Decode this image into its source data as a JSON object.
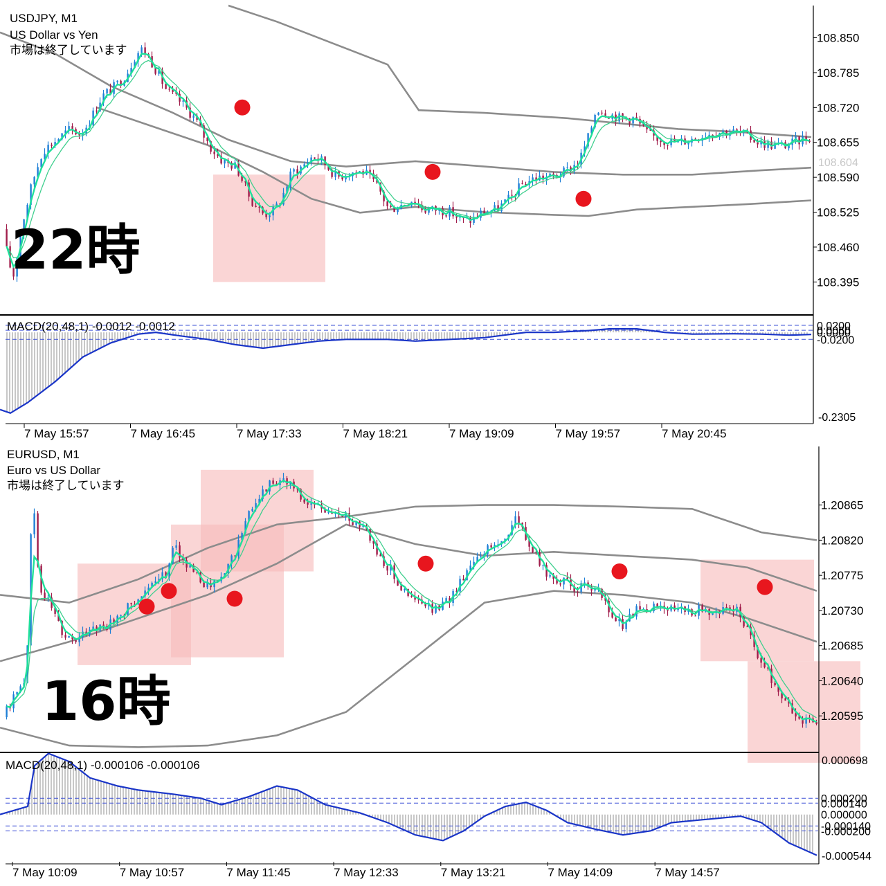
{
  "chart_data": [
    {
      "type": "candlestick",
      "symbol_line": "USDJPY, M1",
      "description": "US Dollar vs Yen",
      "status": "市場は終了しています",
      "overlay_text": "22時",
      "ylim": [
        108.34,
        108.91
      ],
      "y_ticks": [
        "108.850",
        "108.785",
        "108.720",
        "108.655",
        "108.590",
        "108.525",
        "108.460",
        "108.395"
      ],
      "current_price": "108.604",
      "x_ticks": [
        "7 May 15:57",
        "7 May 16:45",
        "7 May 17:33",
        "7 May 18:21",
        "7 May 19:09",
        "7 May 19:57",
        "7 May 20:45"
      ],
      "price_path": [
        [
          0,
          108.56
        ],
        [
          12,
          108.46
        ],
        [
          22,
          108.4
        ],
        [
          35,
          108.5
        ],
        [
          50,
          108.58
        ],
        [
          65,
          108.64
        ],
        [
          85,
          108.66
        ],
        [
          105,
          108.68
        ],
        [
          120,
          108.67
        ],
        [
          135,
          108.7
        ],
        [
          150,
          108.74
        ],
        [
          170,
          108.76
        ],
        [
          185,
          108.78
        ],
        [
          200,
          108.82
        ],
        [
          210,
          108.83
        ],
        [
          225,
          108.8
        ],
        [
          245,
          108.75
        ],
        [
          265,
          108.73
        ],
        [
          285,
          108.7
        ],
        [
          305,
          108.65
        ],
        [
          325,
          108.62
        ],
        [
          345,
          108.61
        ],
        [
          365,
          108.55
        ],
        [
          385,
          108.52
        ],
        [
          400,
          108.53
        ],
        [
          410,
          108.55
        ],
        [
          425,
          108.6
        ],
        [
          440,
          108.61
        ],
        [
          455,
          108.63
        ],
        [
          470,
          108.62
        ],
        [
          490,
          108.59
        ],
        [
          510,
          108.6
        ],
        [
          530,
          108.6
        ],
        [
          550,
          108.57
        ],
        [
          565,
          108.53
        ],
        [
          585,
          108.54
        ],
        [
          600,
          108.55
        ],
        [
          615,
          108.53
        ],
        [
          635,
          108.53
        ],
        [
          655,
          108.525
        ],
        [
          670,
          108.51
        ],
        [
          685,
          108.51
        ],
        [
          700,
          108.525
        ],
        [
          720,
          108.53
        ],
        [
          740,
          108.55
        ],
        [
          760,
          108.58
        ],
        [
          780,
          108.59
        ],
        [
          800,
          108.59
        ],
        [
          820,
          108.6
        ],
        [
          840,
          108.62
        ],
        [
          855,
          108.67
        ],
        [
          865,
          108.72
        ],
        [
          880,
          108.71
        ],
        [
          900,
          108.7
        ],
        [
          920,
          108.7
        ],
        [
          940,
          108.67
        ],
        [
          960,
          108.66
        ],
        [
          980,
          108.655
        ],
        [
          1000,
          108.66
        ],
        [
          1020,
          108.67
        ],
        [
          1040,
          108.675
        ],
        [
          1060,
          108.675
        ],
        [
          1080,
          108.67
        ],
        [
          1100,
          108.655
        ],
        [
          1120,
          108.65
        ],
        [
          1140,
          108.65
        ],
        [
          1160,
          108.66
        ],
        [
          1172,
          108.665
        ]
      ],
      "bollinger": {
        "upper": [
          [
            330,
            108.91
          ],
          [
            400,
            108.88
          ],
          [
            480,
            108.84
          ],
          [
            560,
            108.8
          ],
          [
            605,
            108.715
          ],
          [
            700,
            108.71
          ],
          [
            820,
            108.7
          ],
          [
            900,
            108.69
          ],
          [
            980,
            108.68
          ],
          [
            1060,
            108.675
          ],
          [
            1172,
            108.665
          ]
        ],
        "middle": [
          [
            0,
            108.86
          ],
          [
            80,
            108.82
          ],
          [
            160,
            108.76
          ],
          [
            250,
            108.71
          ],
          [
            330,
            108.66
          ],
          [
            420,
            108.62
          ],
          [
            500,
            108.61
          ],
          [
            600,
            108.62
          ],
          [
            700,
            108.61
          ],
          [
            800,
            108.6
          ],
          [
            900,
            108.595
          ],
          [
            1000,
            108.595
          ],
          [
            1100,
            108.603
          ],
          [
            1172,
            108.608
          ]
        ],
        "lower": [
          [
            140,
            108.72
          ],
          [
            220,
            108.685
          ],
          [
            300,
            108.65
          ],
          [
            380,
            108.6
          ],
          [
            450,
            108.55
          ],
          [
            520,
            108.524
          ],
          [
            600,
            108.535
          ],
          [
            700,
            108.525
          ],
          [
            800,
            108.52
          ],
          [
            850,
            108.518
          ],
          [
            920,
            108.53
          ],
          [
            1000,
            108.535
          ],
          [
            1080,
            108.54
          ],
          [
            1172,
            108.547
          ]
        ]
      },
      "markers": [
        [
          350,
          108.72
        ],
        [
          625,
          108.6
        ],
        [
          843,
          108.55
        ]
      ],
      "highlights": [
        {
          "x0": 308,
          "x1": 470,
          "y_top": 108.595,
          "y_bottom": 108.395
        }
      ],
      "macd": {
        "label": "MACD(20,48,1) -0.0012 -0.0012",
        "ylim": [
          -0.26,
          0.02
        ],
        "y_ticks": [
          "-0.2305"
        ],
        "level_labels": [
          "0.0200",
          "0.0060",
          "0.0000",
          "-0.0200"
        ],
        "path": [
          [
            0,
            -0.22
          ],
          [
            15,
            -0.23
          ],
          [
            40,
            -0.2
          ],
          [
            80,
            -0.14
          ],
          [
            120,
            -0.07
          ],
          [
            160,
            -0.03
          ],
          [
            200,
            -0.005
          ],
          [
            225,
            0.0
          ],
          [
            260,
            -0.01
          ],
          [
            300,
            -0.02
          ],
          [
            340,
            -0.035
          ],
          [
            380,
            -0.045
          ],
          [
            420,
            -0.035
          ],
          [
            460,
            -0.025
          ],
          [
            500,
            -0.02
          ],
          [
            560,
            -0.02
          ],
          [
            600,
            -0.025
          ],
          [
            650,
            -0.02
          ],
          [
            700,
            -0.015
          ],
          [
            760,
            0.0
          ],
          [
            800,
            0.0
          ],
          [
            850,
            0.005
          ],
          [
            880,
            0.01
          ],
          [
            920,
            0.01
          ],
          [
            960,
            0.0
          ],
          [
            1000,
            -0.005
          ],
          [
            1060,
            -0.004
          ],
          [
            1100,
            -0.005
          ],
          [
            1140,
            -0.008
          ],
          [
            1172,
            -0.006
          ]
        ]
      }
    },
    {
      "type": "candlestick",
      "symbol_line": "EURUSD, M1",
      "description": "Euro vs US Dollar",
      "status": "市場は終了しています",
      "overlay_text": "16時",
      "ylim": [
        1.2055,
        1.2094
      ],
      "y_ticks": [
        "1.20865",
        "1.20820",
        "1.20775",
        "1.20730",
        "1.20685",
        "1.20640",
        "1.20595"
      ],
      "x_ticks": [
        "7 May 10:09",
        "7 May 10:57",
        "7 May 11:45",
        "7 May 12:33",
        "7 May 13:21",
        "7 May 14:09",
        "7 May 14:57"
      ],
      "price_path": [
        [
          0,
          1.2058
        ],
        [
          30,
          1.2063
        ],
        [
          42,
          1.2065
        ],
        [
          50,
          1.2089
        ],
        [
          60,
          1.2076
        ],
        [
          75,
          1.2074
        ],
        [
          95,
          1.207
        ],
        [
          115,
          1.2069
        ],
        [
          135,
          1.2071
        ],
        [
          160,
          1.2071
        ],
        [
          185,
          1.2073
        ],
        [
          205,
          1.2075
        ],
        [
          225,
          1.2076
        ],
        [
          245,
          1.2078
        ],
        [
          255,
          1.2082
        ],
        [
          270,
          1.2079
        ],
        [
          290,
          1.2077
        ],
        [
          310,
          1.2076
        ],
        [
          330,
          1.2078
        ],
        [
          350,
          1.2082
        ],
        [
          370,
          1.2087
        ],
        [
          390,
          1.2089
        ],
        [
          410,
          1.209
        ],
        [
          425,
          1.2089
        ],
        [
          440,
          1.2087
        ],
        [
          470,
          1.2086
        ],
        [
          500,
          1.2085
        ],
        [
          530,
          1.2084
        ],
        [
          550,
          1.208
        ],
        [
          570,
          1.2078
        ],
        [
          590,
          1.2075
        ],
        [
          610,
          1.2074
        ],
        [
          630,
          1.2073
        ],
        [
          650,
          1.2074
        ],
        [
          670,
          1.2077
        ],
        [
          690,
          1.208
        ],
        [
          710,
          1.2081
        ],
        [
          730,
          1.2082
        ],
        [
          750,
          1.2085
        ],
        [
          770,
          1.2081
        ],
        [
          790,
          1.2078
        ],
        [
          810,
          1.2077
        ],
        [
          830,
          1.2076
        ],
        [
          850,
          1.2076
        ],
        [
          870,
          1.2075
        ],
        [
          890,
          1.2072
        ],
        [
          905,
          1.2071
        ],
        [
          920,
          1.2073
        ],
        [
          940,
          1.2073
        ],
        [
          960,
          1.2074
        ],
        [
          980,
          1.2073
        ],
        [
          1000,
          1.2073
        ],
        [
          1020,
          1.2073
        ],
        [
          1050,
          1.2073
        ],
        [
          1070,
          1.2073
        ],
        [
          1085,
          1.207
        ],
        [
          1100,
          1.2067
        ],
        [
          1120,
          1.2064
        ],
        [
          1140,
          1.2061
        ],
        [
          1160,
          1.2059
        ],
        [
          1180,
          1.2059
        ]
      ],
      "bollinger": {
        "upper": [
          [
            0,
            1.2075
          ],
          [
            100,
            1.2074
          ],
          [
            200,
            1.2077
          ],
          [
            300,
            1.2081
          ],
          [
            400,
            1.2084
          ],
          [
            500,
            1.2085
          ],
          [
            600,
            1.20863
          ],
          [
            700,
            1.20865
          ],
          [
            800,
            1.20865
          ],
          [
            900,
            1.20863
          ],
          [
            1000,
            1.2086
          ],
          [
            1100,
            1.2083
          ],
          [
            1180,
            1.2082
          ]
        ],
        "middle": [
          [
            0,
            1.20665
          ],
          [
            100,
            1.2069
          ],
          [
            200,
            1.2072
          ],
          [
            300,
            1.2075
          ],
          [
            400,
            1.2079
          ],
          [
            500,
            1.2084
          ],
          [
            600,
            1.20815
          ],
          [
            700,
            1.208
          ],
          [
            800,
            1.20805
          ],
          [
            900,
            1.208
          ],
          [
            1000,
            1.20795
          ],
          [
            1080,
            1.20785
          ],
          [
            1180,
            1.20755
          ]
        ],
        "lower": [
          [
            0,
            1.2058
          ],
          [
            100,
            1.20557
          ],
          [
            200,
            1.20555
          ],
          [
            300,
            1.20557
          ],
          [
            400,
            1.2057
          ],
          [
            500,
            1.206
          ],
          [
            600,
            1.2067
          ],
          [
            700,
            1.2074
          ],
          [
            800,
            1.20755
          ],
          [
            900,
            1.2075
          ],
          [
            1000,
            1.2074
          ],
          [
            1080,
            1.2072
          ],
          [
            1180,
            1.2069
          ]
        ]
      },
      "markers": [
        [
          212,
          1.20735
        ],
        [
          244,
          1.20755
        ],
        [
          339,
          1.20745
        ],
        [
          615,
          1.2079
        ],
        [
          895,
          1.2078
        ],
        [
          1105,
          1.2076
        ]
      ],
      "highlights": [
        {
          "x0": 112,
          "x1": 276,
          "y_top": 1.2079,
          "y_bottom": 1.2066
        },
        {
          "x0": 247,
          "x1": 410,
          "y_top": 1.2084,
          "y_bottom": 1.2067
        },
        {
          "x0": 290,
          "x1": 453,
          "y_top": 1.2091,
          "y_bottom": 1.2078
        },
        {
          "x0": 1012,
          "x1": 1176,
          "y_top": 1.20795,
          "y_bottom": 1.20665
        },
        {
          "x0": 1080,
          "x1": 1243,
          "y_top": 1.20665,
          "y_bottom": 1.20535
        }
      ],
      "macd": {
        "label": "MACD(20,48,1) -0.000106 -0.000106",
        "ylim": [
          -0.00058,
          0.00072
        ],
        "y_ticks": [
          "0.000698",
          "-0.000544"
        ],
        "level_labels": [
          "0.000200",
          "0.000140",
          "0.000000",
          "-0.000140",
          "-0.000200"
        ],
        "path": [
          [
            0,
            0.0
          ],
          [
            40,
            0.0001
          ],
          [
            50,
            0.0006
          ],
          [
            70,
            0.00075
          ],
          [
            100,
            0.00065
          ],
          [
            130,
            0.00045
          ],
          [
            170,
            0.00035
          ],
          [
            200,
            0.0003
          ],
          [
            250,
            0.00025
          ],
          [
            290,
            0.0002
          ],
          [
            320,
            0.00012
          ],
          [
            360,
            0.00022
          ],
          [
            400,
            0.00035
          ],
          [
            430,
            0.0003
          ],
          [
            470,
            0.00012
          ],
          [
            520,
            2e-05
          ],
          [
            560,
            -0.0001
          ],
          [
            600,
            -0.00025
          ],
          [
            640,
            -0.00032
          ],
          [
            670,
            -0.0002
          ],
          [
            700,
            -2e-05
          ],
          [
            730,
            0.0001
          ],
          [
            760,
            0.00015
          ],
          [
            790,
            5e-05
          ],
          [
            820,
            -0.0001
          ],
          [
            860,
            -0.00018
          ],
          [
            900,
            -0.00025
          ],
          [
            940,
            -0.0002
          ],
          [
            970,
            -0.0001
          ],
          [
            1020,
            -6e-05
          ],
          [
            1070,
            -2e-05
          ],
          [
            1100,
            -0.0001
          ],
          [
            1140,
            -0.00035
          ],
          [
            1180,
            -0.0005
          ]
        ]
      }
    }
  ],
  "colors": {
    "bull": "#1e7fd6",
    "bear": "#a01c4a",
    "fast_ma": "#1ee09a",
    "slow_ma": "#3fcf8e",
    "band": "#8c8c8c",
    "macd_line": "#1a35c8",
    "marker": "#e8161e",
    "highlight": "#f7bcbc"
  }
}
